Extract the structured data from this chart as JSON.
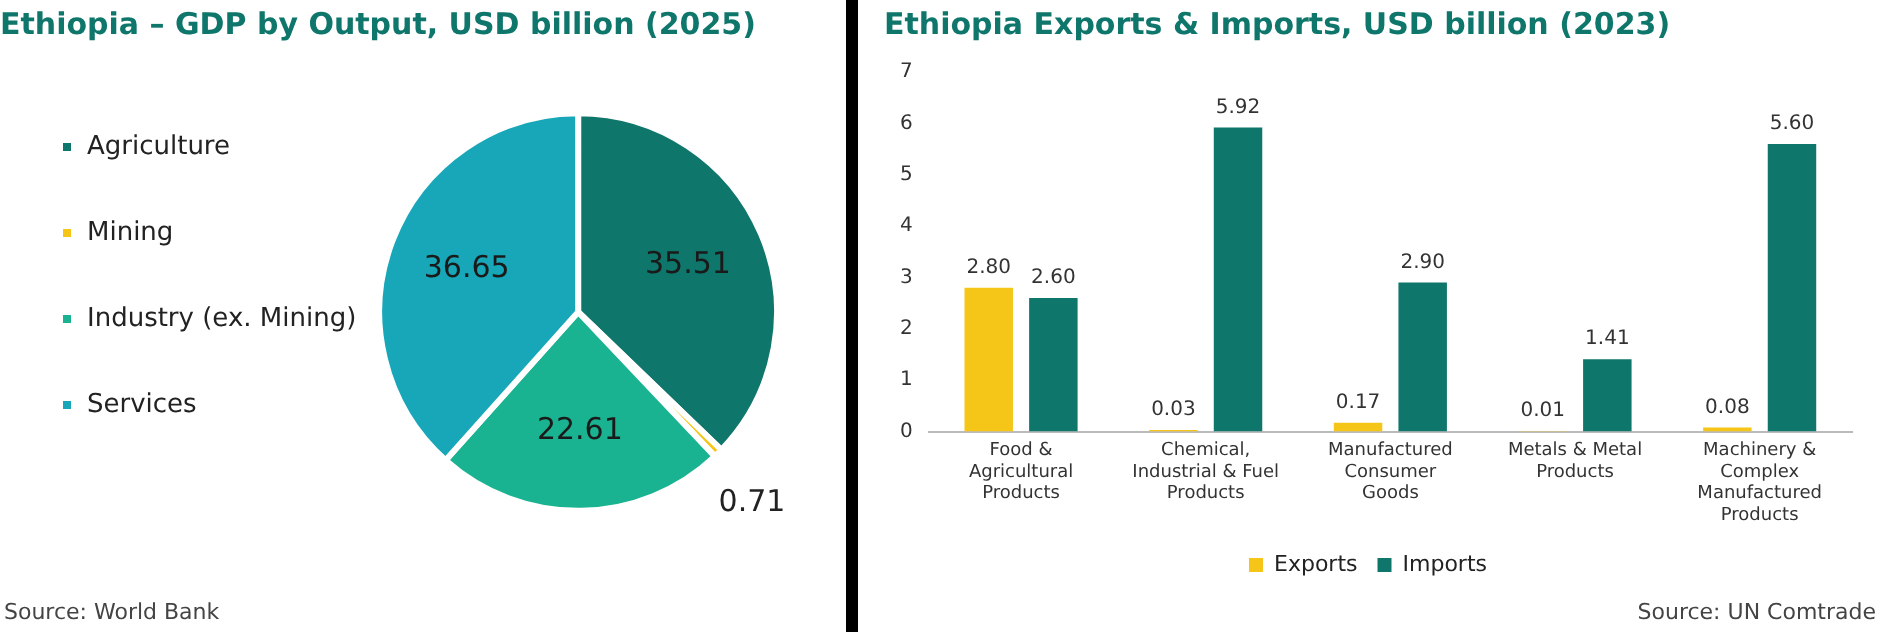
{
  "chart_data": [
    {
      "type": "pie",
      "title": "Ethiopia – GDP by Output, USD billion (2025)",
      "categories": [
        "Agriculture",
        "Mining",
        "Industry (ex. Mining)",
        "Services"
      ],
      "values": [
        35.51,
        0.71,
        22.61,
        36.65
      ],
      "colors": [
        "#0e766b",
        "#f5c518",
        "#1ab391",
        "#17a7b8"
      ],
      "legend": "left",
      "data_labels": true,
      "annotations": [
        "Source: World Bank"
      ]
    },
    {
      "type": "bar",
      "title": "Ethiopia Exports & Imports, USD billion (2023)",
      "categories": [
        "Food &\nAgricultural\nProducts",
        "Chemical,\nIndustrial & Fuel\nProducts",
        "Manufactured\nConsumer\nGoods",
        "Metals & Metal\nProducts",
        "Machinery &\nComplex\nManufactured\nProducts"
      ],
      "series": [
        {
          "name": "Exports",
          "color": "#f5c518",
          "values": [
            2.8,
            0.03,
            0.17,
            0.01,
            0.08
          ],
          "value_labels": [
            "2.80",
            "0.03",
            "0.17",
            "0.01",
            "0.08"
          ]
        },
        {
          "name": "Imports",
          "color": "#0e766b",
          "values": [
            2.6,
            5.92,
            2.9,
            1.41,
            5.6
          ],
          "value_labels": [
            "2.60",
            "5.92",
            "2.90",
            "1.41",
            "5.60"
          ]
        }
      ],
      "ylim": [
        0,
        7
      ],
      "yticks": [
        0,
        1,
        2,
        3,
        4,
        5,
        6,
        7
      ],
      "legend": "bottom",
      "annotations": [
        "Source: UN Comtrade"
      ]
    }
  ]
}
